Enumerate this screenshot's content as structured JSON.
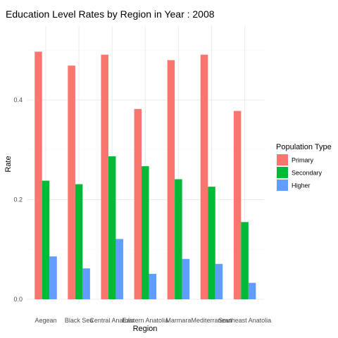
{
  "chart_data": {
    "type": "bar",
    "title": "Education Level Rates by Region in Year : 2008",
    "xlabel": "Region",
    "ylabel": "Rate",
    "categories": [
      "Aegean",
      "Black Sea",
      "Central Anatolia",
      "Eastern Anatolia",
      "Marmara",
      "Mediterranean",
      "Southeast Anatolia"
    ],
    "series": [
      {
        "name": "Primary",
        "color": "#F8766D",
        "values": [
          0.497,
          0.469,
          0.491,
          0.382,
          0.48,
          0.491,
          0.378
        ]
      },
      {
        "name": "Secondary",
        "color": "#00BA38",
        "values": [
          0.238,
          0.231,
          0.287,
          0.267,
          0.241,
          0.226,
          0.155
        ]
      },
      {
        "name": "Higher",
        "color": "#619CFF",
        "values": [
          0.086,
          0.062,
          0.121,
          0.051,
          0.081,
          0.071,
          0.033
        ]
      }
    ],
    "ylim": [
      0,
      0.52
    ],
    "yticks": [
      0.0,
      0.2,
      0.4
    ],
    "ytick_labels": [
      "0.0",
      "0.2",
      "0.4"
    ],
    "legend_title": "Population Type",
    "legend_position": "right",
    "grid": true
  }
}
